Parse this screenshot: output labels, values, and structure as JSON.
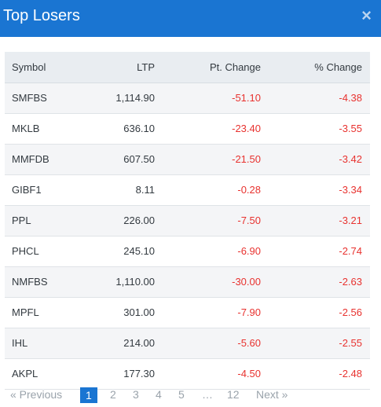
{
  "header": {
    "title": "Top Losers",
    "close_icon": "×"
  },
  "table": {
    "columns": [
      "Symbol",
      "LTP",
      "Pt. Change",
      "% Change"
    ],
    "rows": [
      {
        "symbol": "SMFBS",
        "ltp": "1,114.90",
        "pt_change": "-51.10",
        "pct_change": "-4.38"
      },
      {
        "symbol": "MKLB",
        "ltp": "636.10",
        "pt_change": "-23.40",
        "pct_change": "-3.55"
      },
      {
        "symbol": "MMFDB",
        "ltp": "607.50",
        "pt_change": "-21.50",
        "pct_change": "-3.42"
      },
      {
        "symbol": "GIBF1",
        "ltp": "8.11",
        "pt_change": "-0.28",
        "pct_change": "-3.34"
      },
      {
        "symbol": "PPL",
        "ltp": "226.00",
        "pt_change": "-7.50",
        "pct_change": "-3.21"
      },
      {
        "symbol": "PHCL",
        "ltp": "245.10",
        "pt_change": "-6.90",
        "pct_change": "-2.74"
      },
      {
        "symbol": "NMFBS",
        "ltp": "1,110.00",
        "pt_change": "-30.00",
        "pct_change": "-2.63"
      },
      {
        "symbol": "MPFL",
        "ltp": "301.00",
        "pt_change": "-7.90",
        "pct_change": "-2.56"
      },
      {
        "symbol": "IHL",
        "ltp": "214.00",
        "pt_change": "-5.60",
        "pct_change": "-2.55"
      },
      {
        "symbol": "AKPL",
        "ltp": "177.30",
        "pt_change": "-4.50",
        "pct_change": "-2.48"
      }
    ]
  },
  "pagination": {
    "previous": "« Previous",
    "pages": [
      "1",
      "2",
      "3",
      "4",
      "5"
    ],
    "ellipsis": "…",
    "last_page": "12",
    "next": "Next »",
    "active_page": "1"
  },
  "colors": {
    "header_bg": "#1a75d2",
    "negative": "#e8322f"
  }
}
